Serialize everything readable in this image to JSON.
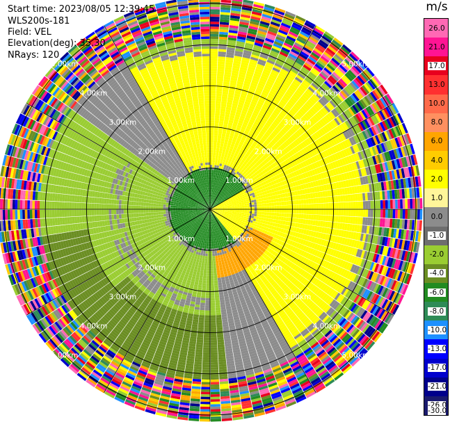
{
  "header": {
    "start_time": "Start time: 2023/08/05 12:39:45",
    "instrument": "WLS200s-181",
    "field": "Field: VEL",
    "elevation": "Elevation(deg): 35.30",
    "nrays": "NRays: 120"
  },
  "colorbar": {
    "unit": "m/s",
    "levels": [
      "26.0",
      "21.0",
      "17.0",
      "13.0",
      "10.0",
      "8.0",
      "6.0",
      "4.0",
      "2.0",
      "1.0",
      "0.0",
      "-1.0",
      "-2.0",
      "-4.0",
      "-6.0",
      "-8.0",
      "-10.0",
      "-13.0",
      "-17.0",
      "-21.0",
      "-26.0",
      "-30.0"
    ],
    "colors": [
      "#ff69b4",
      "#ff1493",
      "#e8001e",
      "#ff3030",
      "#ff6a4a",
      "#ff9060",
      "#ffa500",
      "#ffcc00",
      "#ffff00",
      "#fff59a",
      "#8c8c8c",
      "#6e6e6e",
      "#9acd32",
      "#6b8e23",
      "#228b22",
      "#2e8b57",
      "#1e90ff",
      "#0000ff",
      "#0000cd",
      "#00008b",
      "#1a1a6e"
    ]
  },
  "chart_data": {
    "type": "ppi",
    "field": "VEL",
    "units": "m/s",
    "nrays": 120,
    "elevation_deg": 35.3,
    "range_rings_km": [
      1.0,
      2.0,
      3.0,
      4.0,
      5.0
    ],
    "ring_labels": [
      "1.00km",
      "2.00km",
      "3.00km",
      "4.00km",
      "5.00km"
    ],
    "max_range_km": 5.0,
    "grid": true,
    "velocity_regions": [
      {
        "region": "center_ring_1km",
        "velocity": -6.0,
        "color": "#228b22"
      },
      {
        "region": "north_to_east_2_4km",
        "velocity": 2.0,
        "color": "#ffff00"
      },
      {
        "region": "east_inner_wedge",
        "velocity": 6.0,
        "color": "#ffa500"
      },
      {
        "region": "west_to_south_1_4km",
        "velocity": -2.0,
        "color": "#9acd32"
      },
      {
        "region": "south_outer_belt_3_4km",
        "velocity": -4.0,
        "color": "#6b8e23"
      },
      {
        "region": "boundary_arcs",
        "velocity": 0.0,
        "color": "#8c8c8c"
      },
      {
        "region": "outer_noise_beyond_4km",
        "velocity": null,
        "color": "mixed"
      }
    ]
  }
}
